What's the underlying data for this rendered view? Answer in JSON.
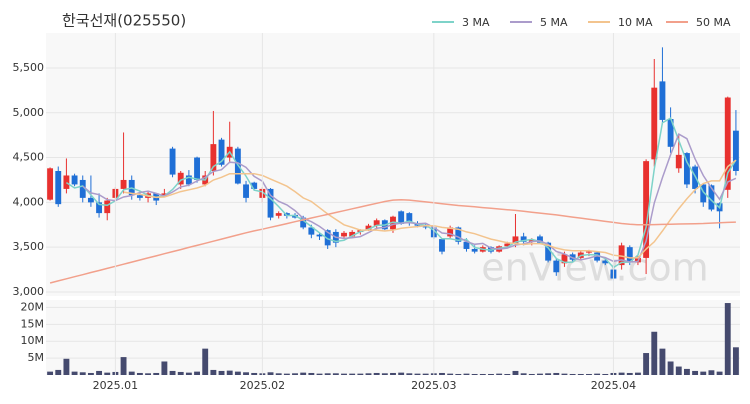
{
  "chart_data": [
    {
      "type": "candlestick",
      "title": "한국선재(025550)",
      "watermark": "enView.com",
      "up_color": "#e8312f",
      "down_color": "#1f6fd6",
      "ylim": [
        2955,
        5890
      ],
      "yticks": [
        {
          "value": 3000,
          "label": "3,000"
        },
        {
          "value": 3500,
          "label": "3,500"
        },
        {
          "value": 4000,
          "label": "4,000"
        },
        {
          "value": 4500,
          "label": "4,500"
        },
        {
          "value": 5000,
          "label": "5,000"
        },
        {
          "value": 5500,
          "label": "5,500"
        }
      ],
      "grid": true,
      "open": [
        4030,
        4350,
        4150,
        4300,
        4250,
        4050,
        4000,
        3880,
        4050,
        4150,
        4250,
        4080,
        4050,
        4100,
        4080,
        4600,
        4200,
        4300,
        4500,
        4200,
        4350,
        4700,
        4500,
        4600,
        4200,
        4220,
        4050,
        4150,
        3850,
        3880,
        3860,
        3830,
        3720,
        3640,
        3690,
        3670,
        3620,
        3620,
        3670,
        3690,
        3740,
        3800,
        3700,
        3900,
        3880,
        3770,
        3740,
        3720,
        3590,
        3620,
        3720,
        3560,
        3480,
        3450,
        3500,
        3450,
        3510,
        3540,
        3620,
        3560,
        3620,
        3550,
        3350,
        3320,
        3420,
        3380,
        3440,
        3440,
        3350,
        3250,
        3300,
        3500,
        3330,
        3380,
        4480,
        5350,
        4930,
        4380,
        4550,
        4400,
        4200,
        4190,
        3990,
        4140,
        4800
      ],
      "high": [
        4390,
        4400,
        4490,
        4320,
        4300,
        4300,
        4100,
        4050,
        4170,
        4780,
        4300,
        4120,
        4120,
        4100,
        4150,
        4620,
        4350,
        4360,
        4510,
        4350,
        5020,
        4720,
        4900,
        4620,
        4240,
        4230,
        4170,
        4160,
        3900,
        3890,
        3880,
        3850,
        3750,
        3660,
        3700,
        3700,
        3680,
        3690,
        3700,
        3760,
        3820,
        3810,
        3850,
        3910,
        3890,
        3790,
        3760,
        3740,
        3600,
        3740,
        3730,
        3600,
        3520,
        3520,
        3510,
        3520,
        3560,
        3870,
        3660,
        3600,
        3640,
        3560,
        3380,
        3450,
        3440,
        3460,
        3470,
        3450,
        3380,
        3300,
        3550,
        3520,
        3400,
        4480,
        5600,
        5730,
        5060,
        4760,
        4560,
        4420,
        4210,
        4200,
        4000,
        5180,
        5030
      ],
      "low": [
        4020,
        3950,
        4100,
        4180,
        4000,
        3950,
        3830,
        3800,
        4030,
        4100,
        4030,
        4020,
        4000,
        3970,
        4060,
        4280,
        4150,
        4180,
        4220,
        4180,
        4300,
        4400,
        4450,
        4200,
        4000,
        4130,
        4000,
        3800,
        3820,
        3820,
        3820,
        3700,
        3600,
        3580,
        3480,
        3500,
        3590,
        3600,
        3640,
        3680,
        3700,
        3690,
        3660,
        3750,
        3740,
        3720,
        3700,
        3590,
        3420,
        3600,
        3530,
        3450,
        3430,
        3440,
        3430,
        3440,
        3500,
        3500,
        3520,
        3520,
        3540,
        3330,
        3180,
        3280,
        3340,
        3360,
        3400,
        3330,
        3300,
        3120,
        3250,
        3300,
        3300,
        3200,
        4400,
        4870,
        4550,
        4330,
        4160,
        4100,
        3950,
        3900,
        3710,
        4050,
        4300
      ],
      "close": [
        4380,
        3980,
        4300,
        4200,
        4050,
        4000,
        3880,
        4020,
        4150,
        4250,
        4080,
        4050,
        4100,
        4020,
        4100,
        4310,
        4330,
        4200,
        4250,
        4300,
        4650,
        4420,
        4620,
        4210,
        4050,
        4150,
        4150,
        3830,
        3880,
        3850,
        3830,
        3720,
        3640,
        3620,
        3520,
        3550,
        3660,
        3670,
        3690,
        3740,
        3800,
        3700,
        3840,
        3760,
        3770,
        3740,
        3720,
        3610,
        3450,
        3720,
        3560,
        3480,
        3450,
        3500,
        3450,
        3510,
        3540,
        3620,
        3560,
        3580,
        3550,
        3350,
        3220,
        3420,
        3360,
        3440,
        3450,
        3350,
        3320,
        3150,
        3520,
        3330,
        3380,
        4460,
        5280,
        4920,
        4620,
        4530,
        4200,
        4150,
        4000,
        3920,
        3900,
        5170,
        4350
      ],
      "series": [
        {
          "name": "3 MA",
          "color": "#7ed3c9",
          "values": [
            null,
            null,
            4220,
            4160,
            4183,
            4083,
            3977,
            3967,
            4017,
            4140,
            4160,
            4127,
            4077,
            4057,
            4073,
            4143,
            4247,
            4280,
            4260,
            4250,
            4400,
            4457,
            4563,
            4417,
            4293,
            4137,
            4117,
            4043,
            3953,
            3853,
            3853,
            3800,
            3730,
            3660,
            3593,
            3563,
            3577,
            3627,
            3673,
            3700,
            3743,
            3747,
            3780,
            3767,
            3790,
            3757,
            3743,
            3690,
            3593,
            3593,
            3577,
            3587,
            3497,
            3477,
            3467,
            3487,
            3500,
            3557,
            3573,
            3587,
            3563,
            3493,
            3373,
            3330,
            3333,
            3407,
            3417,
            3413,
            3373,
            3273,
            3330,
            3333,
            3410,
            3723,
            4373,
            4887,
            4940,
            4690,
            4450,
            4293,
            4117,
            4023,
            3940,
            4330,
            4473
          ]
        },
        {
          "name": "5 MA",
          "color": "#ab9ccb",
          "values": [
            null,
            null,
            null,
            null,
            4182,
            4106,
            4086,
            4030,
            4020,
            4060,
            4076,
            4110,
            4126,
            4100,
            4070,
            4116,
            4172,
            4192,
            4238,
            4278,
            4346,
            4364,
            4448,
            4440,
            4390,
            4290,
            4236,
            4078,
            4012,
            3972,
            3908,
            3822,
            3784,
            3732,
            3666,
            3610,
            3598,
            3604,
            3618,
            3662,
            3712,
            3720,
            3754,
            3768,
            3774,
            3762,
            3766,
            3720,
            3658,
            3648,
            3612,
            3564,
            3532,
            3542,
            3488,
            3478,
            3490,
            3524,
            3536,
            3562,
            3570,
            3532,
            3452,
            3424,
            3380,
            3358,
            3378,
            3404,
            3384,
            3342,
            3358,
            3334,
            3340,
            3568,
            3994,
            4274,
            4532,
            4762,
            4710,
            4484,
            4300,
            4160,
            4034,
            4228,
            4268
          ]
        },
        {
          "name": "10 MA",
          "color": "#f3c48e",
          "values": [
            null,
            null,
            null,
            null,
            null,
            null,
            null,
            null,
            null,
            4115,
            4100,
            4090,
            4070,
            4055,
            4060,
            4090,
            4120,
            4140,
            4160,
            4190,
            4250,
            4280,
            4320,
            4320,
            4320,
            4320,
            4300,
            4260,
            4220,
            4180,
            4120,
            4050,
            4010,
            3940,
            3870,
            3810,
            3750,
            3720,
            3690,
            3690,
            3690,
            3680,
            3690,
            3710,
            3720,
            3730,
            3740,
            3740,
            3720,
            3710,
            3700,
            3670,
            3650,
            3620,
            3590,
            3570,
            3550,
            3540,
            3530,
            3540,
            3540,
            3520,
            3490,
            3470,
            3460,
            3460,
            3460,
            3450,
            3440,
            3410,
            3400,
            3380,
            3380,
            3480,
            3560,
            3680,
            3810,
            3930,
            4040,
            4140,
            4210,
            4240,
            4240,
            4400,
            4470
          ]
        },
        {
          "name": "50 MA",
          "color": "#f2a08b",
          "values": [
            3100,
            3123,
            3147,
            3170,
            3193,
            3217,
            3240,
            3263,
            3287,
            3310,
            3333,
            3357,
            3380,
            3403,
            3427,
            3450,
            3473,
            3497,
            3520,
            3543,
            3567,
            3590,
            3613,
            3637,
            3660,
            3681,
            3701,
            3722,
            3742,
            3763,
            3784,
            3804,
            3825,
            3845,
            3866,
            3887,
            3907,
            3928,
            3948,
            3969,
            3990,
            4010,
            4025,
            4030,
            4025,
            4015,
            4005,
            3995,
            3985,
            3975,
            3965,
            3958,
            3950,
            3942,
            3934,
            3926,
            3918,
            3910,
            3900,
            3890,
            3880,
            3870,
            3860,
            3848,
            3836,
            3824,
            3812,
            3800,
            3788,
            3776,
            3764,
            3755,
            3750,
            3750,
            3752,
            3754,
            3756,
            3758,
            3760,
            3762,
            3764,
            3768,
            3772,
            3776,
            3780
          ]
        }
      ]
    },
    {
      "type": "bar",
      "color": "#454a6e",
      "categories": [
        null,
        null,
        null,
        null,
        null,
        null,
        null,
        null,
        "2025.01",
        null,
        null,
        null,
        null,
        null,
        null,
        null,
        null,
        null,
        null,
        null,
        null,
        null,
        null,
        null,
        null,
        null,
        "2025.02",
        null,
        null,
        null,
        null,
        null,
        null,
        null,
        null,
        null,
        null,
        null,
        null,
        null,
        null,
        null,
        null,
        null,
        null,
        null,
        null,
        "2025.03",
        null,
        null,
        null,
        null,
        null,
        null,
        null,
        null,
        null,
        null,
        null,
        null,
        null,
        null,
        null,
        null,
        null,
        null,
        null,
        null,
        null,
        "2025.04",
        null,
        null,
        null,
        null,
        null,
        null,
        null,
        null,
        null,
        null,
        null,
        null,
        null,
        null,
        null
      ],
      "values": [
        1.0,
        1.5,
        4.8,
        1.0,
        0.8,
        0.6,
        1.2,
        0.7,
        0.9,
        5.3,
        1.0,
        0.6,
        0.5,
        0.6,
        4.0,
        1.2,
        0.9,
        0.7,
        1.0,
        7.8,
        1.5,
        1.2,
        1.3,
        1.0,
        0.8,
        0.6,
        0.5,
        0.8,
        0.5,
        0.4,
        0.5,
        0.7,
        0.6,
        0.4,
        0.5,
        0.5,
        0.4,
        0.4,
        0.4,
        0.5,
        0.6,
        0.5,
        0.6,
        0.7,
        0.5,
        0.4,
        0.4,
        0.5,
        0.6,
        0.4,
        0.3,
        0.4,
        0.3,
        0.3,
        0.3,
        0.4,
        0.3,
        1.2,
        0.5,
        0.3,
        0.4,
        0.5,
        0.6,
        0.4,
        0.3,
        0.3,
        0.3,
        0.4,
        0.3,
        0.6,
        0.7,
        0.6,
        0.7,
        6.5,
        12.8,
        7.8,
        4.0,
        2.5,
        1.8,
        1.2,
        1.0,
        1.4,
        1.0,
        21.3,
        8.2
      ],
      "ylim": [
        0,
        22.2
      ],
      "yticks": [
        {
          "value": 5,
          "label": "5M"
        },
        {
          "value": 10,
          "label": "10M"
        },
        {
          "value": 15,
          "label": "15M"
        },
        {
          "value": 20,
          "label": "20M"
        }
      ],
      "grid": true
    }
  ]
}
